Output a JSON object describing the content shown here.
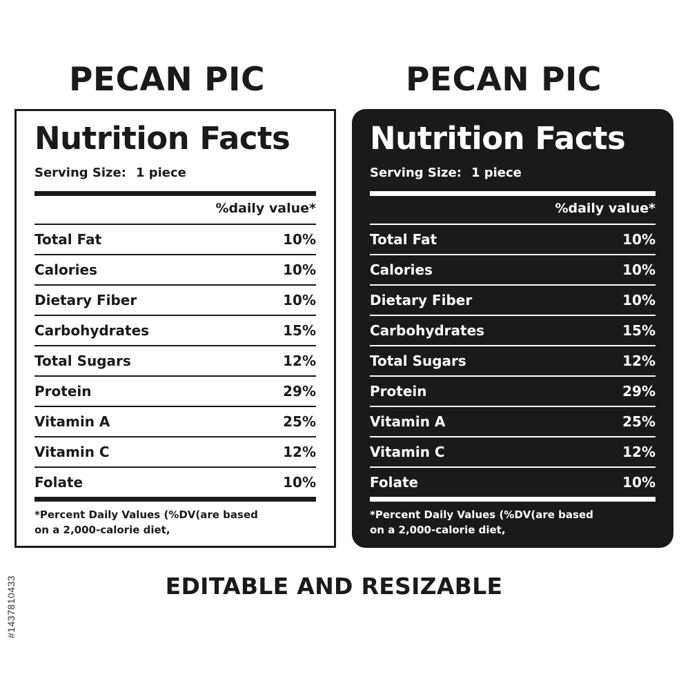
{
  "labels": [
    {
      "variant": "light",
      "heading": "PECAN PIC",
      "title": "Nutrition Facts",
      "serving_label": "Serving Size:",
      "serving_value": "1 piece",
      "dv_header": "%daily value*",
      "rows": [
        {
          "name": "Total Fat",
          "value": "10%"
        },
        {
          "name": "Calories",
          "value": "10%"
        },
        {
          "name": "Dietary Fiber",
          "value": "10%"
        },
        {
          "name": "Carbohydrates",
          "value": "15%"
        },
        {
          "name": "Total Sugars",
          "value": "12%"
        },
        {
          "name": "Protein",
          "value": "29%"
        },
        {
          "name": "Vitamin A",
          "value": "25%"
        },
        {
          "name": "Vitamin C",
          "value": "12%"
        },
        {
          "name": "Folate",
          "value": "10%"
        }
      ],
      "footnote_line1": "*Percent Daily Values (%DV(are  based",
      "footnote_line2": "on a 2,000-calorie diet,"
    },
    {
      "variant": "dark",
      "heading": "PECAN PIC",
      "title": "Nutrition Facts",
      "serving_label": "Serving Size:",
      "serving_value": "1 piece",
      "dv_header": "%daily value*",
      "rows": [
        {
          "name": "Total Fat",
          "value": "10%"
        },
        {
          "name": "Calories",
          "value": "10%"
        },
        {
          "name": "Dietary Fiber",
          "value": "10%"
        },
        {
          "name": "Carbohydrates",
          "value": "15%"
        },
        {
          "name": "Total Sugars",
          "value": "12%"
        },
        {
          "name": "Protein",
          "value": "29%"
        },
        {
          "name": "Vitamin A",
          "value": "25%"
        },
        {
          "name": "Vitamin C",
          "value": "12%"
        },
        {
          "name": "Folate",
          "value": "10%"
        }
      ],
      "footnote_line1": "*Percent Daily Values (%DV(are  based",
      "footnote_line2": "on a 2,000-calorie diet,"
    }
  ],
  "caption": "EDITABLE AND RESIZABLE",
  "stock_id": "#1437810433",
  "colors": {
    "ink": "#1a1a1a",
    "paper": "#ffffff"
  }
}
